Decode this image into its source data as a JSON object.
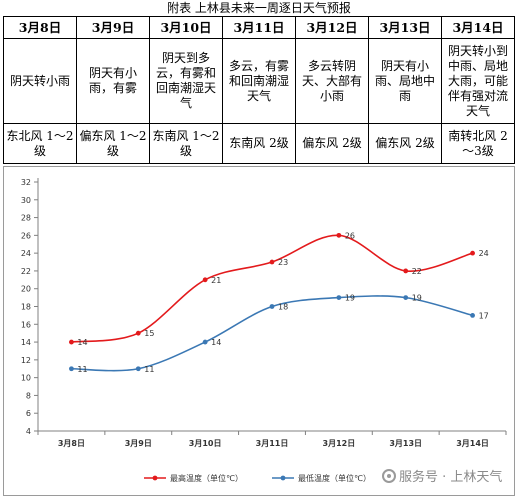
{
  "title": "附表  上林县未来一周逐日天气预报",
  "days": [
    {
      "date": "3月8日",
      "weather": "阴天转小雨",
      "wind": "东北风 1～2级"
    },
    {
      "date": "3月9日",
      "weather": "阴天有小雨，有雾",
      "wind": "偏东风 1～2级"
    },
    {
      "date": "3月10日",
      "weather": "阴天到多云，有雾和回南潮湿天气",
      "wind": "东南风 1～2级"
    },
    {
      "date": "3月11日",
      "weather": "多云，有雾和回南潮湿天气",
      "wind": "东南风 2级"
    },
    {
      "date": "3月12日",
      "weather": "多云转阴天、大部有小雨",
      "wind": "偏东风 2级"
    },
    {
      "date": "3月13日",
      "weather": "阴天有小雨、局地中雨",
      "wind": "偏东风 2级"
    },
    {
      "date": "3月14日",
      "weather": "阴天转小到中雨、局地大雨，可能伴有强对流天气",
      "wind": "南转北风 2～3级"
    }
  ],
  "watermark": "服务号 · 上林天气",
  "chart_data": {
    "type": "line",
    "categories": [
      "3月8日",
      "3月9日",
      "3月10日",
      "3月11日",
      "3月12日",
      "3月13日",
      "3月14日"
    ],
    "series": [
      {
        "name": "最高温度（单位℃）",
        "values": [
          14,
          15,
          21,
          23,
          26,
          22,
          24
        ],
        "color": "#e31a1c"
      },
      {
        "name": "最低温度（单位℃）",
        "values": [
          11,
          11,
          14,
          18,
          19,
          19,
          17
        ],
        "color": "#3b78b4"
      }
    ],
    "ylim": [
      4,
      32
    ],
    "yticks": [
      4,
      6,
      8,
      10,
      12,
      14,
      16,
      18,
      20,
      22,
      24,
      26,
      28,
      30,
      32
    ],
    "grid": false,
    "legend": "bottom",
    "xlabel": "",
    "ylabel": ""
  }
}
